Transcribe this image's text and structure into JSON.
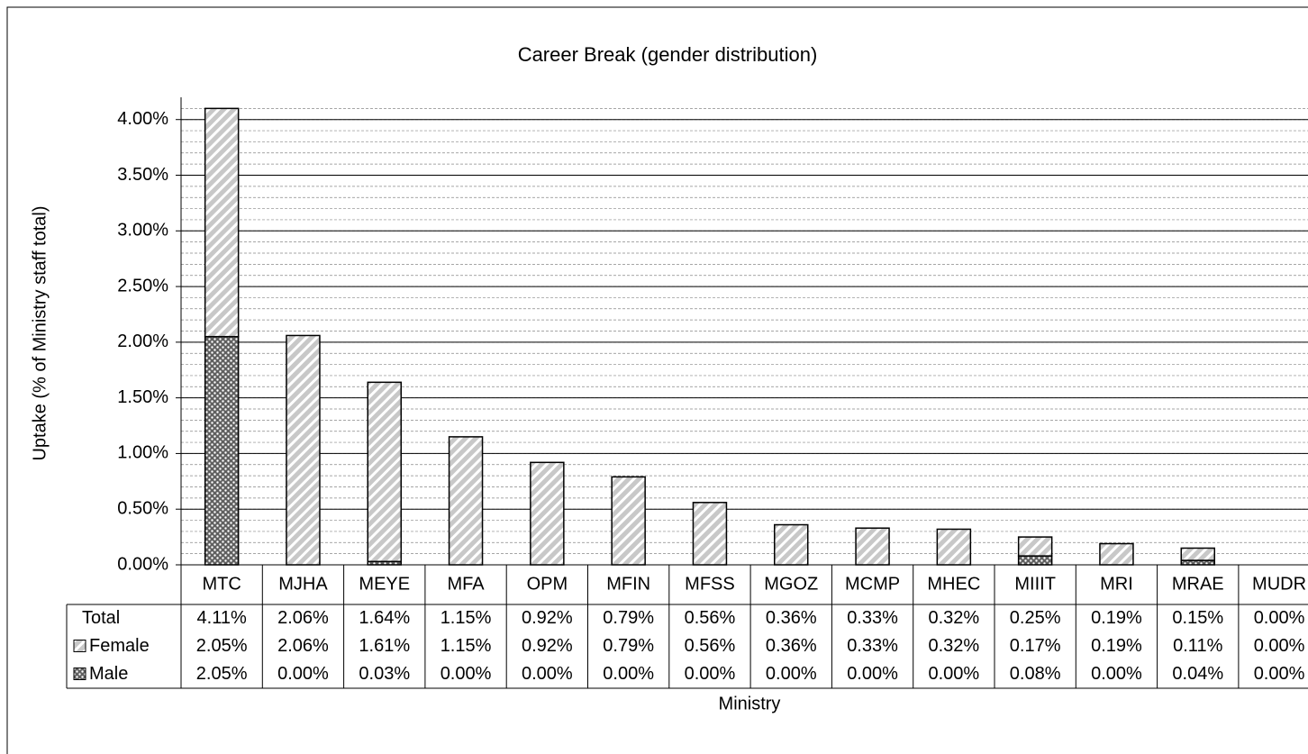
{
  "chart_data": {
    "type": "stacked_bar",
    "title": "Career Break (gender distribution)",
    "y_label": "Uptake (% of Ministry staff total)",
    "x_label": "Ministry",
    "categories": [
      "MTC",
      "MJHA",
      "MEYE",
      "MFA",
      "OPM",
      "MFIN",
      "MFSS",
      "MGOZ",
      "MCMP",
      "MHEC",
      "MIIIT",
      "MRI",
      "MRAE",
      "MUDR"
    ],
    "series": [
      {
        "name": "Male",
        "color": "#606060",
        "pattern": "dots",
        "values": [
          2.05,
          0,
          0.03,
          0,
          0,
          0,
          0,
          0,
          0,
          0,
          0.08,
          0,
          0.04,
          0
        ],
        "value_labels": [
          "2.05%",
          "0.00%",
          "0.03%",
          "0.00%",
          "0.00%",
          "0.00%",
          "0.00%",
          "0.00%",
          "0.00%",
          "0.00%",
          "0.08%",
          "0.00%",
          "0.04%",
          "0.00%"
        ]
      },
      {
        "name": "Female",
        "color": "#c8c8c8",
        "pattern": "hatch",
        "values": [
          2.05,
          2.06,
          1.61,
          1.15,
          0.92,
          0.79,
          0.56,
          0.36,
          0.33,
          0.32,
          0.17,
          0.19,
          0.11,
          0
        ],
        "value_labels": [
          "2.05%",
          "2.06%",
          "1.61%",
          "1.15%",
          "0.92%",
          "0.79%",
          "0.56%",
          "0.36%",
          "0.33%",
          "0.32%",
          "0.17%",
          "0.19%",
          "0.11%",
          "0.00%"
        ]
      }
    ],
    "totals": {
      "name": "Total",
      "values": [
        4.11,
        2.06,
        1.64,
        1.15,
        0.92,
        0.79,
        0.56,
        0.36,
        0.33,
        0.32,
        0.25,
        0.19,
        0.15,
        0
      ],
      "value_labels": [
        "4.11%",
        "2.06%",
        "1.64%",
        "1.15%",
        "0.92%",
        "0.79%",
        "0.56%",
        "0.36%",
        "0.33%",
        "0.32%",
        "0.25%",
        "0.19%",
        "0.15%",
        "0.00%"
      ]
    },
    "ylim": [
      0,
      4.2
    ],
    "yticks": [
      {
        "value": 0,
        "label": "0.00%"
      },
      {
        "value": 0.5,
        "label": "0.50%"
      },
      {
        "value": 1,
        "label": "1.00%"
      },
      {
        "value": 1.5,
        "label": "1.50%"
      },
      {
        "value": 2,
        "label": "2.00%"
      },
      {
        "value": 2.5,
        "label": "2.50%"
      },
      {
        "value": 3,
        "label": "3.00%"
      },
      {
        "value": 3.5,
        "label": "3.50%"
      },
      {
        "value": 4,
        "label": "4.00%"
      }
    ],
    "grid": true
  }
}
